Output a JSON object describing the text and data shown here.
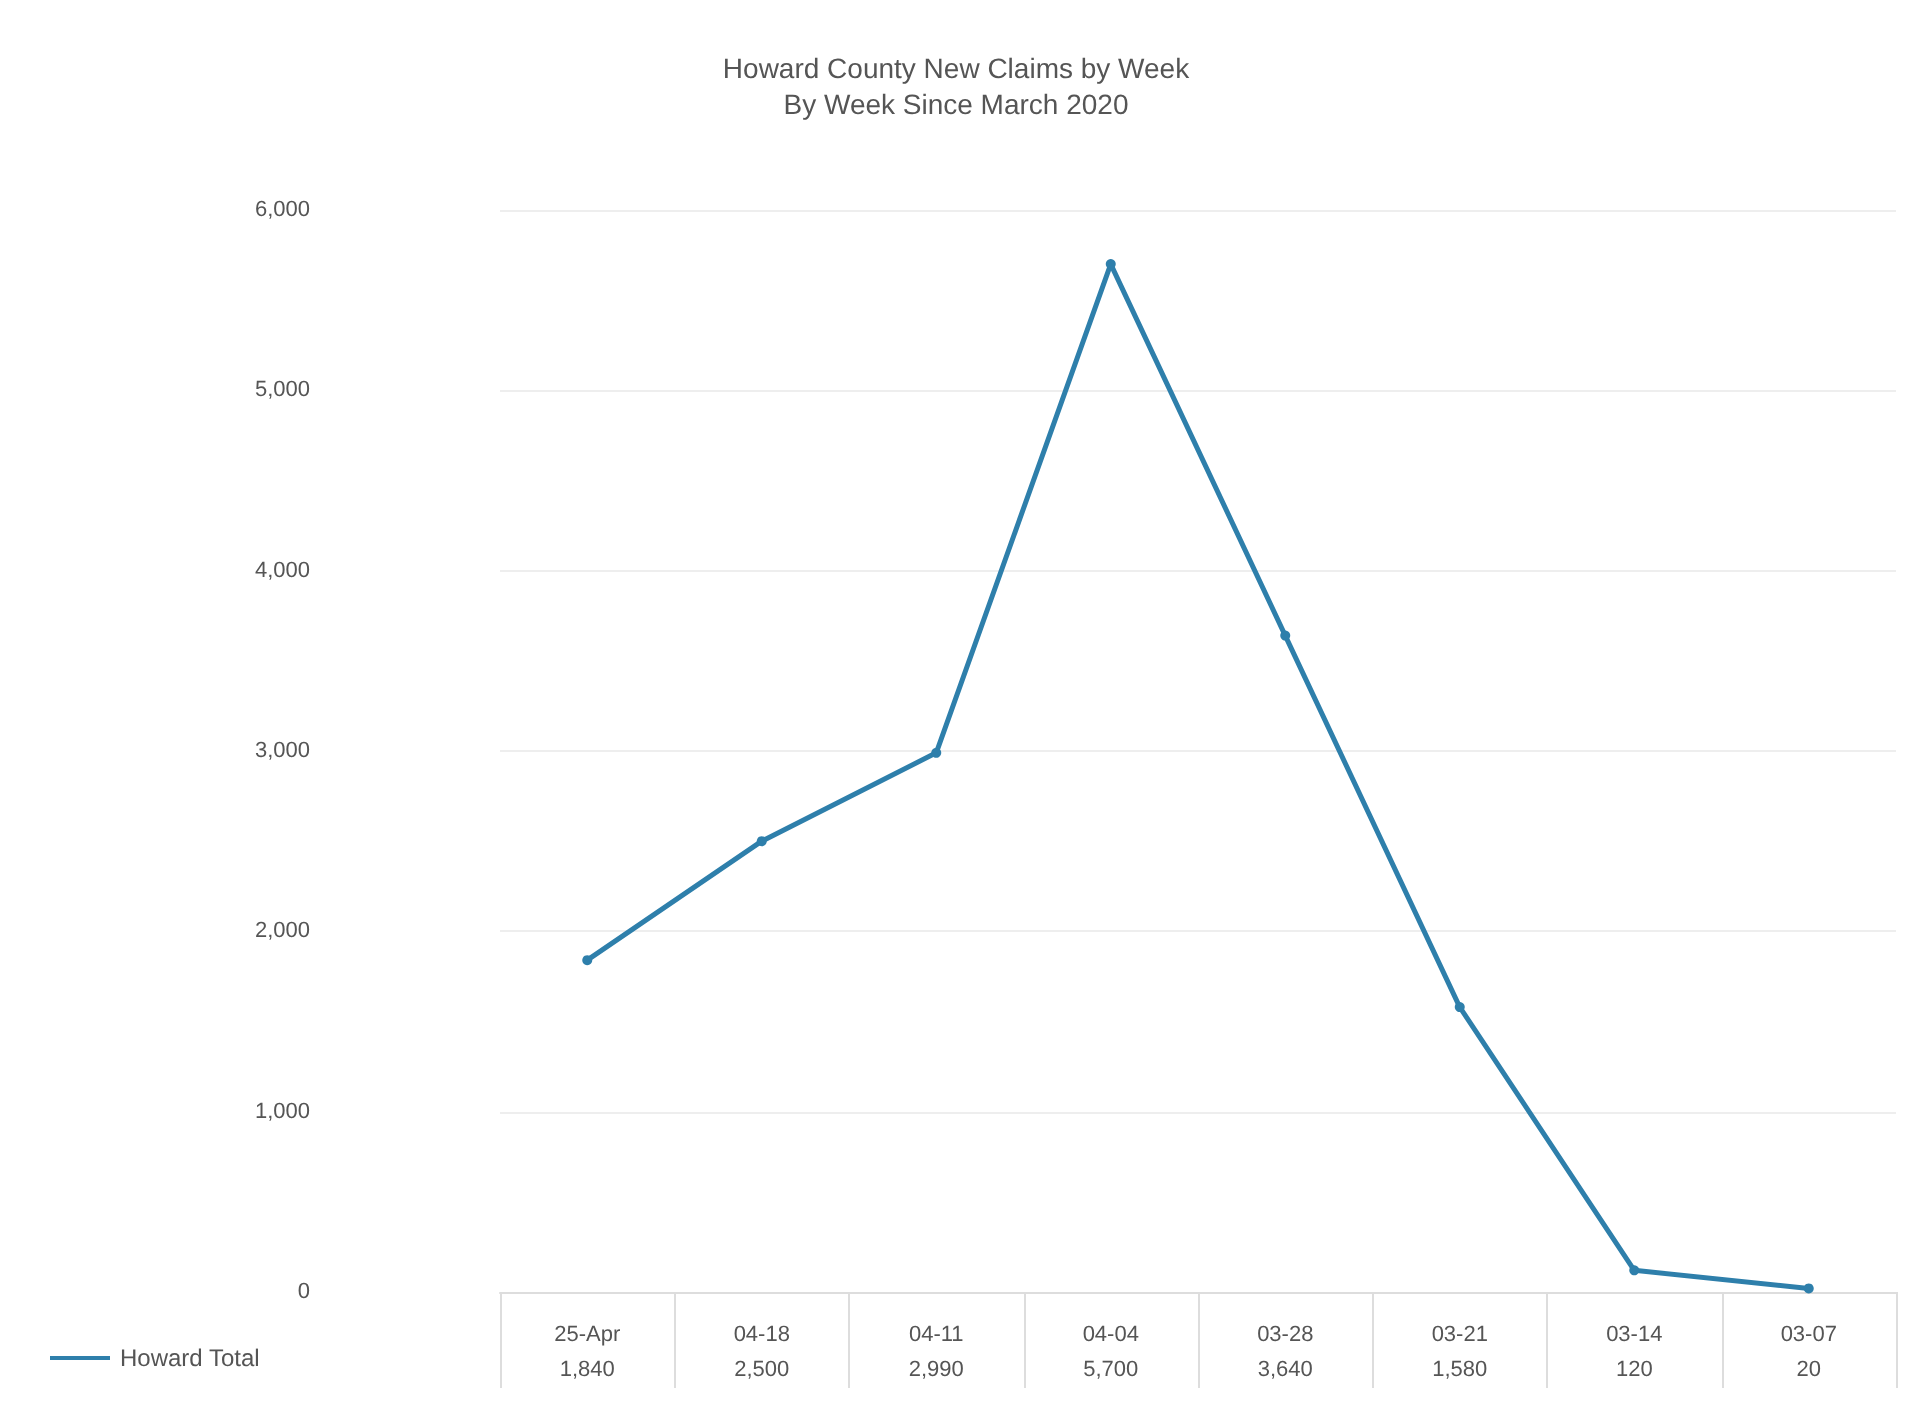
{
  "chart_data": {
    "type": "line",
    "title": "Howard County New Claims by Week",
    "subtitle": "By Week Since March 2020",
    "categories": [
      "25-Apr",
      "04-18",
      "04-11",
      "04-04",
      "03-28",
      "03-21",
      "03-14",
      "03-07"
    ],
    "series": [
      {
        "name": "Howard Total",
        "color": "#2e7fab",
        "values": [
          1840,
          2500,
          2990,
          5700,
          3640,
          1580,
          120,
          20
        ],
        "value_labels": [
          "1,840",
          "2,500",
          "2,990",
          "5,700",
          "3,640",
          "1,580",
          "120",
          "20"
        ]
      }
    ],
    "ylim": [
      0,
      6000
    ],
    "yticks": [
      {
        "value": 0,
        "label": "0"
      },
      {
        "value": 1000,
        "label": "1,000"
      },
      {
        "value": 2000,
        "label": "2,000"
      },
      {
        "value": 3000,
        "label": "3,000"
      },
      {
        "value": 4000,
        "label": "4,000"
      },
      {
        "value": 5000,
        "label": "5,000"
      },
      {
        "value": 6000,
        "label": "6,000"
      }
    ],
    "grid": "y",
    "legend": "bottom left",
    "marker": "circle",
    "line_style": "solid"
  }
}
